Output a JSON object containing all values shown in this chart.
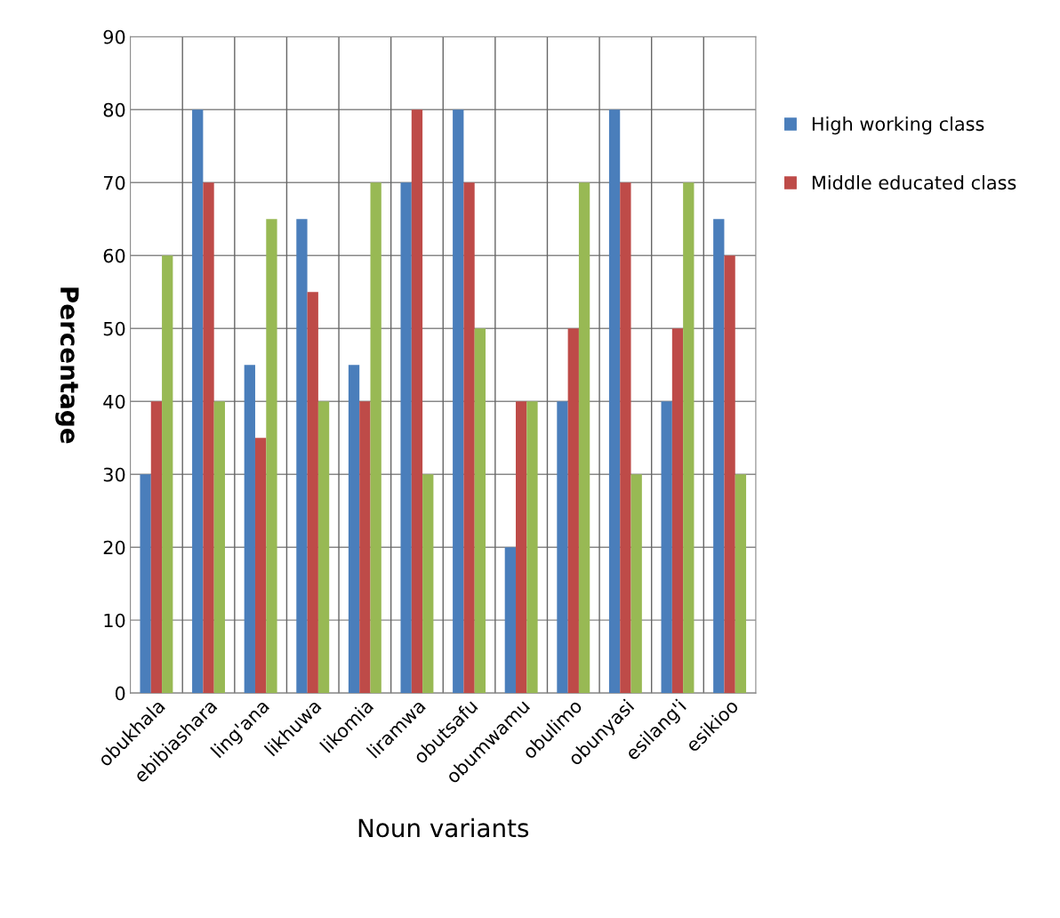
{
  "chart_data": {
    "type": "bar",
    "xlabel": "Noun variants",
    "ylabel": "Percentage",
    "categories": [
      "obukhala",
      "ebibiashara",
      "ling'ana",
      "likhuwa",
      "likomia",
      "liramwa",
      "obutsafu",
      "obumwamu",
      "obulimo",
      "obunyasi",
      "esilang'i",
      "esikioo"
    ],
    "series": [
      {
        "name": "High working class",
        "color": "#4a7ebb",
        "values": [
          30,
          80,
          45,
          65,
          45,
          70,
          80,
          20,
          40,
          80,
          40,
          65
        ]
      },
      {
        "name": "Middle educated class",
        "color": "#be4b48",
        "values": [
          40,
          70,
          35,
          55,
          40,
          80,
          70,
          40,
          50,
          70,
          50,
          60
        ]
      },
      {
        "color": "#98b954",
        "values": [
          60,
          40,
          65,
          40,
          70,
          30,
          50,
          40,
          70,
          30,
          70,
          30
        ]
      }
    ],
    "ylim": [
      0,
      90
    ],
    "yticks": [
      0,
      10,
      20,
      30,
      40,
      50,
      60,
      70,
      80,
      90
    ],
    "grid": true,
    "legend": "right"
  }
}
